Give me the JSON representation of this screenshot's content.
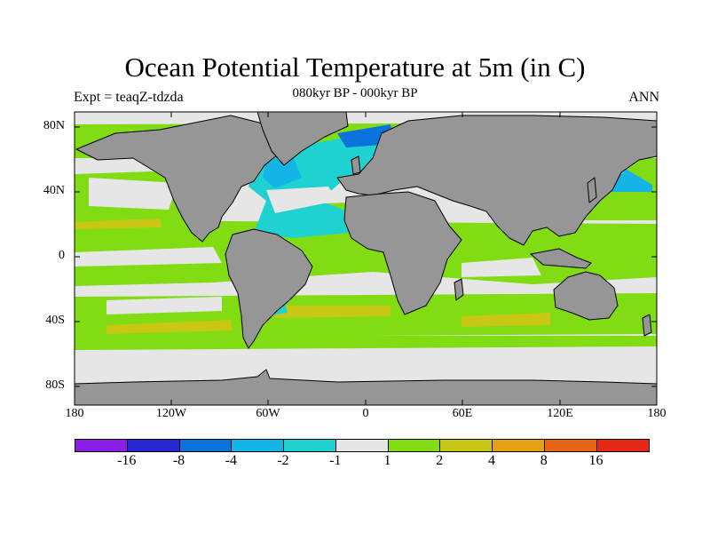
{
  "title": "Ocean Potential Temperature at 5m (in C)",
  "subtitle_left": "Expt = teaqZ-tdzda",
  "subtitle_center": "080kyr BP - 000kyr BP",
  "subtitle_right": "ANN",
  "lat_labels": [
    "80N",
    "40N",
    "0",
    "40S",
    "80S"
  ],
  "lon_labels": [
    "180",
    "120W",
    "60W",
    "0",
    "60E",
    "120E",
    "180"
  ],
  "colorbar": {
    "colors": [
      "#8a1ee6",
      "#2828d2",
      "#0a73dc",
      "#14b4e6",
      "#1ed2d2",
      "#e6e6e6",
      "#82dc14",
      "#c8c814",
      "#e6a014",
      "#e66414",
      "#e62814"
    ],
    "labels": [
      "-16",
      "-8",
      "-4",
      "-2",
      "-1",
      "1",
      "2",
      "4",
      "8",
      "16"
    ]
  },
  "colors": {
    "land": "#969696",
    "neutral": "#e6e6e6",
    "warm1": "#82dc14",
    "warm2": "#c8c814",
    "warm3": "#e6a014",
    "cool1": "#1ed2d2",
    "cool2": "#14b4e6",
    "cool3": "#0a73dc"
  }
}
